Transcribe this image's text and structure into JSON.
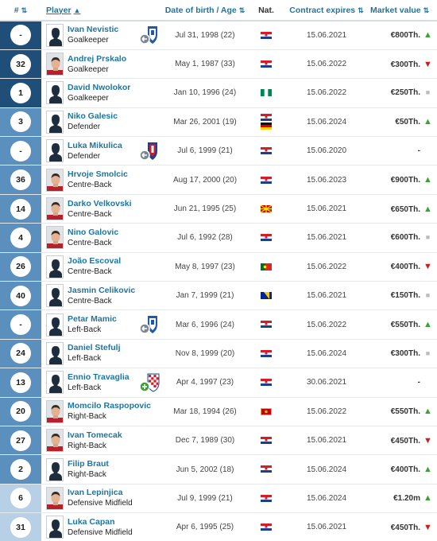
{
  "headers": {
    "num": "#",
    "player": "Player",
    "dob": "Date of birth / Age",
    "nat": "Nat.",
    "contract": "Contract expires",
    "mv": "Market value"
  },
  "colors": {
    "goalkeeper": "#1d3c5a",
    "defender": "#2a6a96",
    "midfield": "#a9c4dc",
    "link": "#1d75a3",
    "arrow_up": "#3aa334",
    "arrow_down": "#c81e1e"
  },
  "players": [
    {
      "num": "-",
      "name": "Ivan Nevistic",
      "pos": "Goalkeeper",
      "dob": "Jul 31, 1998 (22)",
      "flags": [
        "croatia"
      ],
      "contract": "15.06.2021",
      "mv": "€800Th.",
      "trend": "up",
      "badge": "loan-out-blue",
      "photo": "silhouette",
      "group": "gk"
    },
    {
      "num": "32",
      "name": "Andrej Prskalo",
      "pos": "Goalkeeper",
      "dob": "May 1, 1987 (33)",
      "flags": [
        "croatia"
      ],
      "contract": "15.06.2022",
      "mv": "€300Th.",
      "trend": "down",
      "badge": "",
      "photo": "portrait",
      "group": "gk"
    },
    {
      "num": "1",
      "name": "David Nwolokor",
      "pos": "Goalkeeper",
      "dob": "Jan 10, 1996 (24)",
      "flags": [
        "nigeria"
      ],
      "contract": "15.06.2022",
      "mv": "€250Th.",
      "trend": "same",
      "badge": "",
      "photo": "silhouette",
      "group": "gk"
    },
    {
      "num": "3",
      "name": "Niko Galesic",
      "pos": "Defender",
      "dob": "Mar 26, 2001 (19)",
      "flags": [
        "croatia",
        "germany"
      ],
      "contract": "15.06.2024",
      "mv": "€50Th.",
      "trend": "up",
      "badge": "",
      "photo": "silhouette",
      "group": "df"
    },
    {
      "num": "-",
      "name": "Luka Mikulica",
      "pos": "Defender",
      "dob": "Jul 6, 1999 (21)",
      "flags": [
        "croatia"
      ],
      "contract": "15.06.2020",
      "mv": "-",
      "trend": "none",
      "badge": "loan-out-red",
      "photo": "silhouette",
      "group": "df"
    },
    {
      "num": "36",
      "name": "Hrvoje Smolcic",
      "pos": "Centre-Back",
      "dob": "Aug 17, 2000 (20)",
      "flags": [
        "croatia"
      ],
      "contract": "15.06.2023",
      "mv": "€900Th.",
      "trend": "up",
      "badge": "",
      "photo": "portrait",
      "group": "df"
    },
    {
      "num": "14",
      "name": "Darko Velkovski",
      "pos": "Centre-Back",
      "dob": "Jun 21, 1995 (25)",
      "flags": [
        "north-macedonia"
      ],
      "contract": "15.06.2021",
      "mv": "€650Th.",
      "trend": "up",
      "badge": "",
      "photo": "portrait",
      "group": "df"
    },
    {
      "num": "4",
      "name": "Nino Galovic",
      "pos": "Centre-Back",
      "dob": "Jul 6, 1992 (28)",
      "flags": [
        "croatia"
      ],
      "contract": "15.06.2021",
      "mv": "€600Th.",
      "trend": "same",
      "badge": "",
      "photo": "portrait",
      "group": "df"
    },
    {
      "num": "26",
      "name": "João Escoval",
      "pos": "Centre-Back",
      "dob": "May 8, 1997 (23)",
      "flags": [
        "portugal"
      ],
      "contract": "15.06.2022",
      "mv": "€400Th.",
      "trend": "down",
      "badge": "",
      "photo": "silhouette",
      "group": "df"
    },
    {
      "num": "40",
      "name": "Jasmin Celikovic",
      "pos": "Centre-Back",
      "dob": "Jan 7, 1999 (21)",
      "flags": [
        "bosnia"
      ],
      "contract": "15.06.2021",
      "mv": "€150Th.",
      "trend": "same",
      "badge": "",
      "photo": "silhouette",
      "group": "df"
    },
    {
      "num": "-",
      "name": "Petar Mamic",
      "pos": "Left-Back",
      "dob": "Mar 6, 1996 (24)",
      "flags": [
        "croatia"
      ],
      "contract": "15.06.2022",
      "mv": "€550Th.",
      "trend": "up",
      "badge": "loan-out-blue",
      "photo": "silhouette",
      "group": "df"
    },
    {
      "num": "24",
      "name": "Daniel Stefulj",
      "pos": "Left-Back",
      "dob": "Nov 8, 1999 (20)",
      "flags": [
        "croatia"
      ],
      "contract": "15.06.2024",
      "mv": "€300Th.",
      "trend": "same",
      "badge": "",
      "photo": "silhouette",
      "group": "df"
    },
    {
      "num": "13",
      "name": "Ennio Travaglia",
      "pos": "Left-Back",
      "dob": "Apr 4, 1997 (23)",
      "flags": [
        "croatia"
      ],
      "contract": "30.06.2021",
      "mv": "-",
      "trend": "none",
      "badge": "loan-in-croatia",
      "photo": "silhouette",
      "group": "df"
    },
    {
      "num": "20",
      "name": "Momcilo Raspopovic",
      "pos": "Right-Back",
      "dob": "Mar 18, 1994 (26)",
      "flags": [
        "montenegro"
      ],
      "contract": "15.06.2022",
      "mv": "€550Th.",
      "trend": "up",
      "badge": "",
      "photo": "portrait",
      "group": "df"
    },
    {
      "num": "27",
      "name": "Ivan Tomecak",
      "pos": "Right-Back",
      "dob": "Dec 7, 1989 (30)",
      "flags": [
        "croatia"
      ],
      "contract": "15.06.2021",
      "mv": "€450Th.",
      "trend": "down",
      "badge": "",
      "photo": "portrait",
      "group": "df"
    },
    {
      "num": "2",
      "name": "Filip Braut",
      "pos": "Right-Back",
      "dob": "Jun 5, 2002 (18)",
      "flags": [
        "croatia"
      ],
      "contract": "15.06.2024",
      "mv": "€400Th.",
      "trend": "up",
      "badge": "",
      "photo": "silhouette",
      "group": "df"
    },
    {
      "num": "6",
      "name": "Ivan Lepinjica",
      "pos": "Defensive Midfield",
      "dob": "Jul 9, 1999 (21)",
      "flags": [
        "croatia"
      ],
      "contract": "15.06.2024",
      "mv": "€1.20m",
      "trend": "up",
      "badge": "",
      "photo": "portrait",
      "group": "mf"
    },
    {
      "num": "31",
      "name": "Luka Capan",
      "pos": "Defensive Midfield",
      "dob": "Apr 6, 1995 (25)",
      "flags": [
        "croatia"
      ],
      "contract": "15.06.2021",
      "mv": "€450Th.",
      "trend": "down",
      "badge": "",
      "photo": "silhouette",
      "group": "mf"
    }
  ]
}
